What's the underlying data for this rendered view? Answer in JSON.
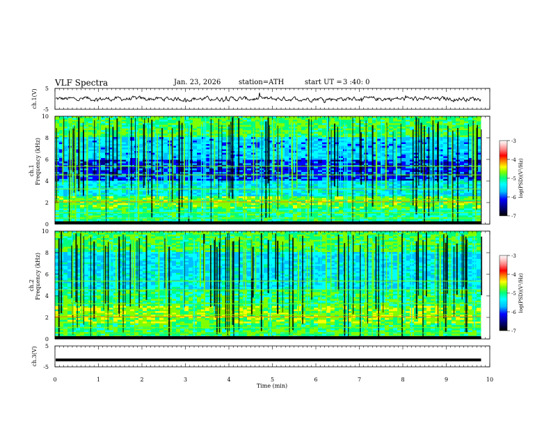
{
  "header": {
    "title": "VLF  Spectra",
    "date": "Jan. 23, 2026",
    "station": "station=ATH",
    "start_label": "start  UT =",
    "start_value": "3 :40: 0"
  },
  "chart_data": [
    {
      "type": "line",
      "name": "ch1-waveform",
      "ylabel": "ch.1(V)",
      "ylim": [
        -5,
        5
      ],
      "yticks": [
        "5",
        "-5"
      ],
      "xlim": [
        0,
        10
      ],
      "xmax_data": 9.8,
      "baseline_value": 0
    },
    {
      "type": "heatmap",
      "name": "ch1-spectrogram",
      "ylabel_channel": "ch.1",
      "ylabel": "Frequency  (kHz)",
      "ylim": [
        0,
        10
      ],
      "yticks": [
        "0",
        "2",
        "4",
        "6",
        "8",
        "10"
      ],
      "xlim": [
        0,
        10
      ],
      "xmax_data": 9.8,
      "colorbar": {
        "label": "log(PSD)(V²/Hz)",
        "range": [
          -7,
          -3
        ],
        "ticks": [
          "-3",
          "-4",
          "-5",
          "-6",
          "-7"
        ]
      }
    },
    {
      "type": "heatmap",
      "name": "ch2-spectrogram",
      "ylabel_channel": "ch.2",
      "ylabel": "Frequency  (kHz)",
      "ylim": [
        0,
        10
      ],
      "yticks": [
        "0",
        "2",
        "4",
        "6",
        "8",
        "10"
      ],
      "xlim": [
        0,
        10
      ],
      "xmax_data": 9.8,
      "colorbar": {
        "label": "log(PSD)(V²/Hz)",
        "range": [
          -7,
          -3
        ],
        "ticks": [
          "-3",
          "-4",
          "-5",
          "-6",
          "-7"
        ]
      }
    },
    {
      "type": "line",
      "name": "ch3-waveform",
      "ylabel": "ch.3(V)",
      "ylim": [
        -5,
        5
      ],
      "yticks": [
        "5",
        "-5"
      ],
      "xlim": [
        0,
        10
      ],
      "xmax_data": 9.8,
      "baseline_value": -1.7
    }
  ],
  "x_axis": {
    "label": "Time  (min)",
    "ticks": [
      "0",
      "1",
      "2",
      "3",
      "4",
      "5",
      "6",
      "7",
      "8",
      "9",
      "10"
    ]
  },
  "colors": {
    "colormap": [
      "#000000",
      "#00008b",
      "#0000ff",
      "#00bfff",
      "#00ffff",
      "#00ff7f",
      "#7fff00",
      "#ffff00",
      "#ff7f00",
      "#ff0000",
      "#ff7f7f",
      "#ffd0d0",
      "#ffffff"
    ]
  }
}
